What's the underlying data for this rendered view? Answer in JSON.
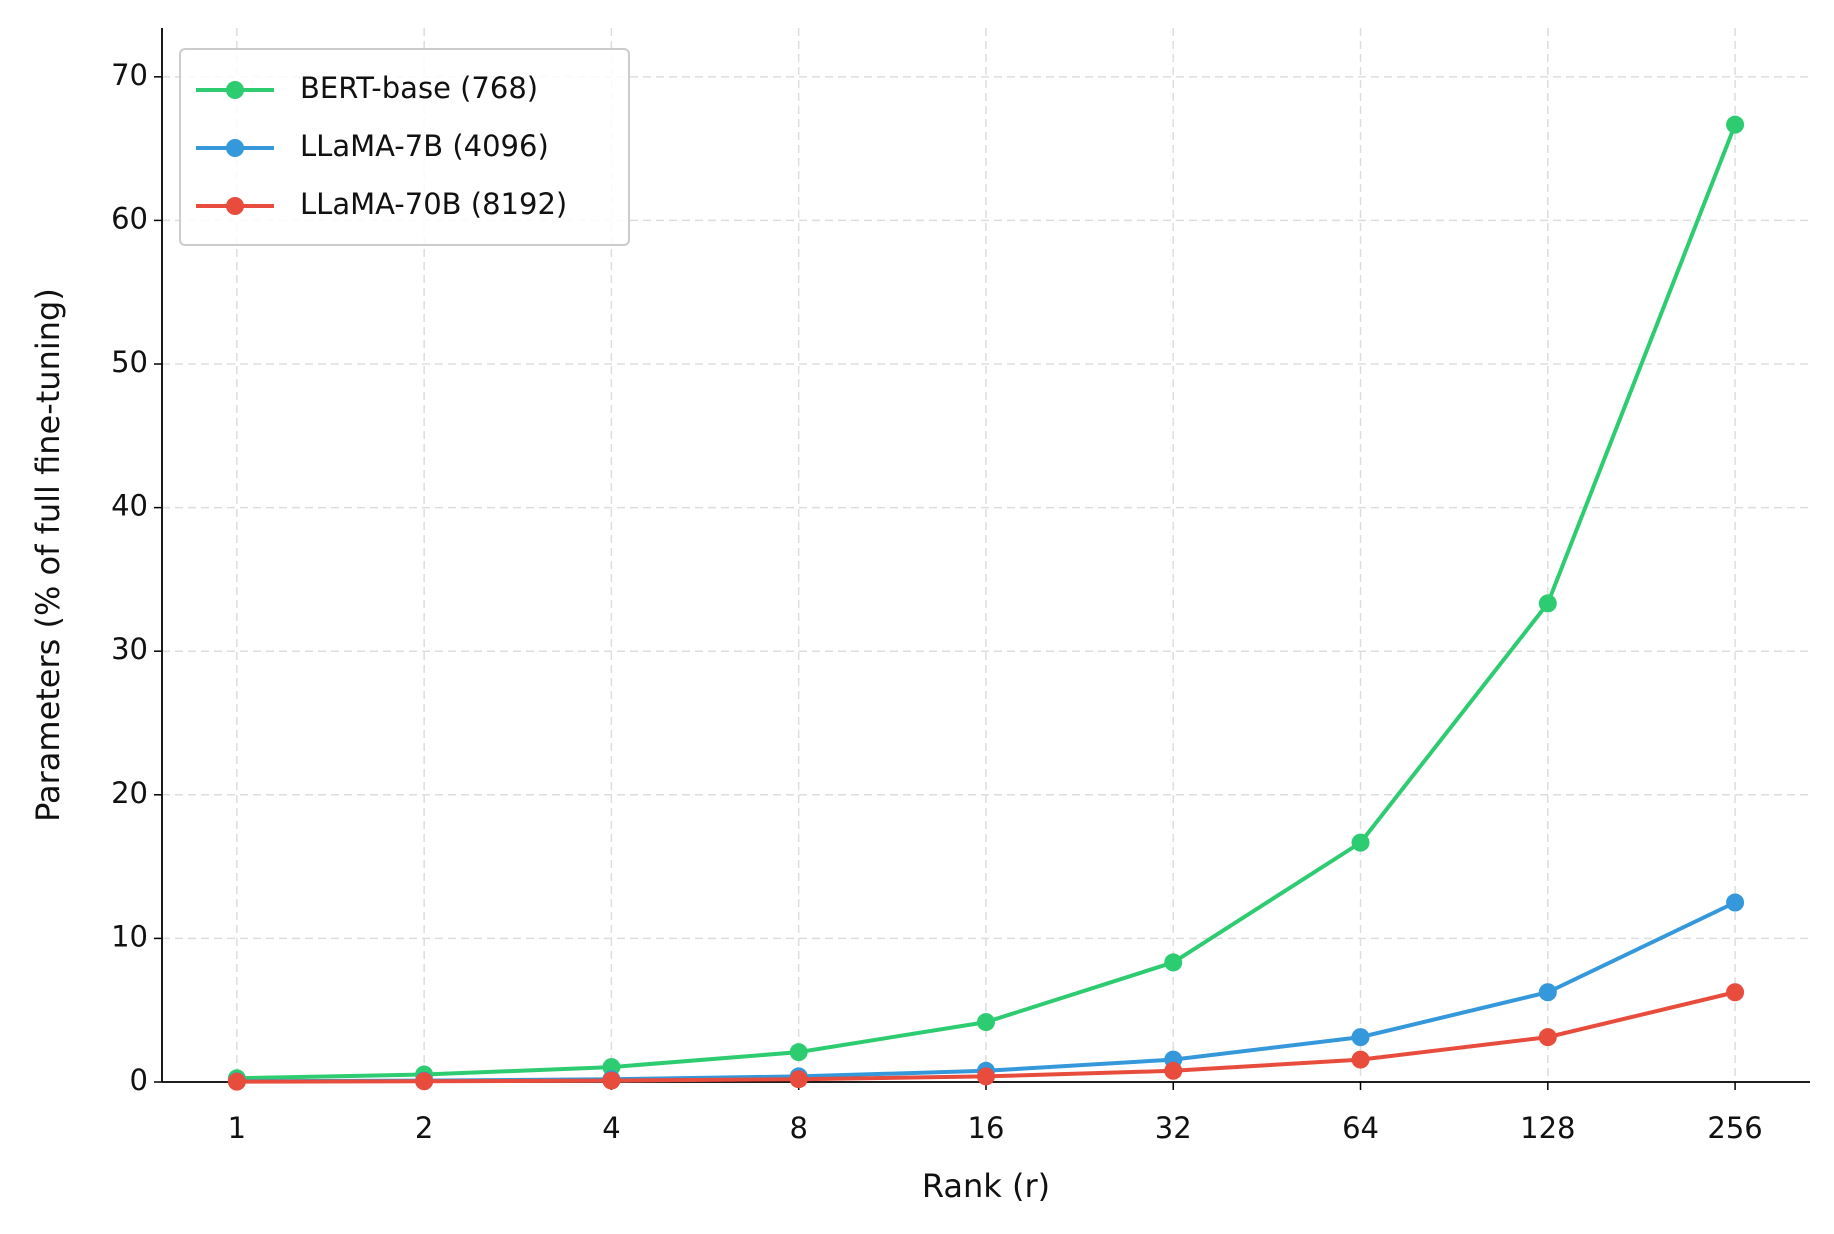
{
  "chart_data": {
    "type": "line",
    "x_label": "Rank (r)",
    "y_label": "Parameters (% of full fine-tuning)",
    "x": [
      1,
      2,
      4,
      8,
      16,
      32,
      64,
      128,
      256
    ],
    "xscale": "log2",
    "xlim": [
      0.758,
      337.8
    ],
    "xticks": [
      1,
      2,
      4,
      8,
      16,
      32,
      64,
      128,
      256
    ],
    "ylim": [
      0,
      73.4
    ],
    "yticks": [
      0,
      10,
      20,
      30,
      40,
      50,
      60,
      70
    ],
    "grid": true,
    "legend": "upper left",
    "series": [
      {
        "name": "BERT-base (768)",
        "color": "#2ecc71",
        "values": [
          0.26,
          0.52,
          1.04,
          2.08,
          4.17,
          8.33,
          16.67,
          33.33,
          66.67
        ]
      },
      {
        "name": "LLaMA-7B (4096)",
        "color": "#3498db",
        "values": [
          0.049,
          0.098,
          0.195,
          0.39,
          0.78,
          1.56,
          3.125,
          6.25,
          12.5
        ]
      },
      {
        "name": "LLaMA-70B (8192)",
        "color": "#e74c3c",
        "values": [
          0.024,
          0.049,
          0.098,
          0.195,
          0.39,
          0.78,
          1.56,
          3.125,
          6.25
        ]
      }
    ]
  }
}
